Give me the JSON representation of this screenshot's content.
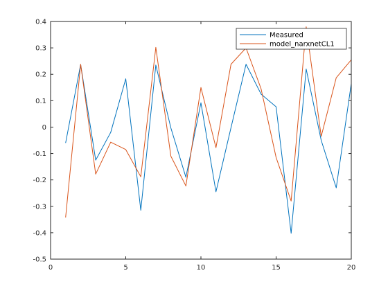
{
  "chart_data": {
    "type": "line",
    "title": "",
    "xlabel": "",
    "ylabel": "",
    "xlim": [
      0,
      20
    ],
    "ylim": [
      -0.5,
      0.4
    ],
    "xticks": [
      0,
      5,
      10,
      15,
      20
    ],
    "yticks": [
      -0.5,
      -0.4,
      -0.3,
      -0.2,
      -0.1,
      0,
      0.1,
      0.2,
      0.3,
      0.4
    ],
    "xtick_labels": [
      "0",
      "5",
      "10",
      "15",
      "20"
    ],
    "ytick_labels": [
      "-0.5",
      "-0.4",
      "-0.3",
      "-0.2",
      "-0.1",
      "0",
      "0.1",
      "0.2",
      "0.3",
      "0.4"
    ],
    "grid": false,
    "legend_position": "top-right",
    "x": [
      1,
      2,
      3,
      4,
      5,
      6,
      7,
      8,
      9,
      10,
      11,
      12,
      13,
      14,
      15,
      16,
      17,
      18,
      19,
      20
    ],
    "series": [
      {
        "name": "Measured",
        "color": "#0072BD",
        "values": [
          -0.06,
          0.237,
          -0.125,
          -0.02,
          0.183,
          -0.315,
          0.235,
          -0.003,
          -0.19,
          0.092,
          -0.245,
          -0.002,
          0.238,
          0.125,
          0.077,
          -0.402,
          0.22,
          -0.05,
          -0.23,
          0.165
        ]
      },
      {
        "name": "model_narxnetCL1",
        "color": "#D95319",
        "values": [
          -0.342,
          0.238,
          -0.178,
          -0.057,
          -0.085,
          -0.188,
          0.302,
          -0.11,
          -0.223,
          0.15,
          -0.078,
          0.238,
          0.3,
          0.145,
          -0.115,
          -0.28,
          0.38,
          -0.035,
          0.187,
          0.255
        ]
      }
    ]
  }
}
